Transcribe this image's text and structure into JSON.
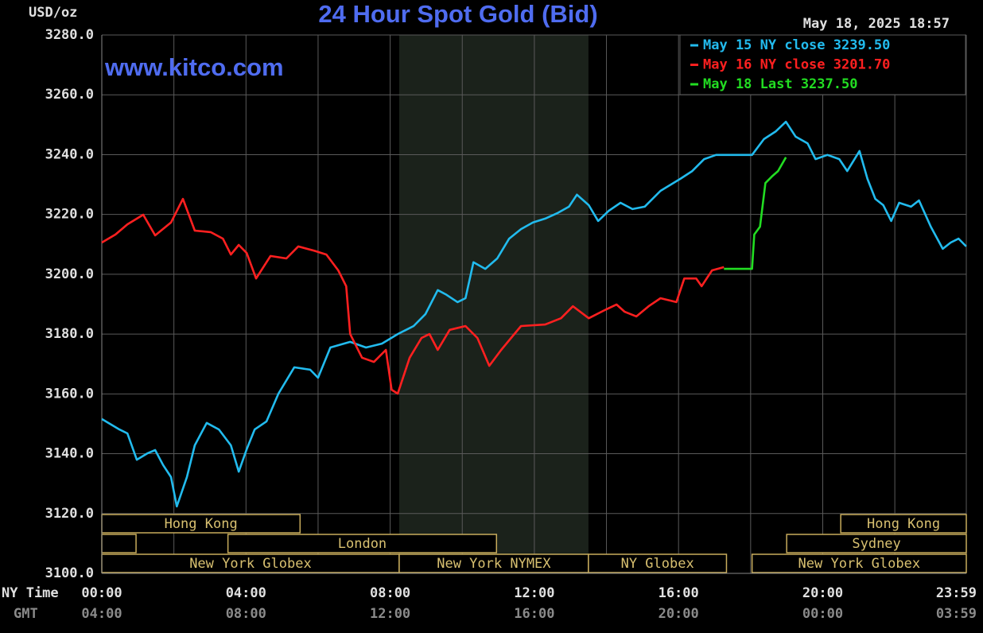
{
  "chart_data": {
    "type": "line",
    "title": "24 Hour Spot Gold (Bid)",
    "y_unit": "USD/oz",
    "timestamp": "May 18, 2025 18:57",
    "watermark": "www.kitco.com",
    "x_row_label": "NY Time",
    "x2_row_label": "GMT",
    "xlim": [
      0,
      23.983
    ],
    "ylim": [
      3100,
      3280
    ],
    "xticks": [
      {
        "value": 0,
        "label": "00:00"
      },
      {
        "value": 4,
        "label": "04:00"
      },
      {
        "value": 8,
        "label": "08:00"
      },
      {
        "value": 12,
        "label": "12:00"
      },
      {
        "value": 16,
        "label": "16:00"
      },
      {
        "value": 20,
        "label": "20:00"
      },
      {
        "value": 23.983,
        "label": "23:59"
      }
    ],
    "x2ticks": [
      {
        "value": 0,
        "label": "04:00"
      },
      {
        "value": 4,
        "label": "08:00"
      },
      {
        "value": 8,
        "label": "12:00"
      },
      {
        "value": 12,
        "label": "16:00"
      },
      {
        "value": 16,
        "label": "20:00"
      },
      {
        "value": 20,
        "label": "00:00"
      },
      {
        "value": 23.983,
        "label": "03:59"
      }
    ],
    "xgrid": [
      0,
      2,
      4,
      6,
      8,
      10,
      12,
      14,
      16,
      18,
      20,
      22,
      23.983
    ],
    "yticks": [
      {
        "value": 3100,
        "label": "3100.0"
      },
      {
        "value": 3120,
        "label": "3120.0"
      },
      {
        "value": 3140,
        "label": "3140.0"
      },
      {
        "value": 3160,
        "label": "3160.0"
      },
      {
        "value": 3180,
        "label": "3180.0"
      },
      {
        "value": 3200,
        "label": "3200.0"
      },
      {
        "value": 3220,
        "label": "3220.0"
      },
      {
        "value": 3240,
        "label": "3240.0"
      },
      {
        "value": 3260,
        "label": "3260.0"
      },
      {
        "value": 3280,
        "label": "3280.0"
      }
    ],
    "grid": true,
    "shaded_hours": [
      8.25,
      13.5
    ],
    "legend": "upper right",
    "sessions": [
      {
        "label": "Hong Kong",
        "start": 0,
        "end": 5.5,
        "row": 0
      },
      {
        "label": "Hong Kong",
        "start": 20.5,
        "end": 23.983,
        "row": 0
      },
      {
        "label": null,
        "start": 0,
        "end": 0.95,
        "row": 1
      },
      {
        "label": "London",
        "start": 3.5,
        "end": 10.95,
        "row": 1
      },
      {
        "label": "Sydney",
        "start": 19,
        "end": 23.983,
        "row": 1
      },
      {
        "label": "New York Globex",
        "start": 0,
        "end": 8.25,
        "row": 2
      },
      {
        "label": "New York NYMEX",
        "start": 8.25,
        "end": 13.5,
        "row": 2
      },
      {
        "label": "NY Globex",
        "start": 13.5,
        "end": 17.33,
        "row": 2
      },
      {
        "label": "New York Globex",
        "start": 18.04,
        "end": 23.983,
        "row": 2
      }
    ],
    "series": [
      {
        "name": "May 15 NY close 3239.50",
        "color": "#22bbee",
        "x": [
          0,
          0.49,
          0.71,
          0.97,
          1.26,
          1.48,
          1.7,
          1.92,
          2.08,
          2.36,
          2.58,
          2.91,
          3.25,
          3.58,
          3.8,
          4.02,
          4.24,
          4.57,
          4.9,
          5.34,
          5.78,
          6,
          6.34,
          6.89,
          7.33,
          7.77,
          8.21,
          8.65,
          8.98,
          9.32,
          9.54,
          9.87,
          10.09,
          10.31,
          10.64,
          10.97,
          11.3,
          11.63,
          11.96,
          12.3,
          12.63,
          12.96,
          13.18,
          13.51,
          13.77,
          14.06,
          14.39,
          14.72,
          15.06,
          15.5,
          16.05,
          16.38,
          16.71,
          17.04,
          18.04,
          18.37,
          18.7,
          18.98,
          19.25,
          19.58,
          19.8,
          20.13,
          20.46,
          20.68,
          21.02,
          21.24,
          21.46,
          21.68,
          21.9,
          22.12,
          22.45,
          22.67,
          23,
          23.33,
          23.55,
          23.77,
          23.98
        ],
        "values": [
          3151.6,
          3148.1,
          3146.8,
          3138,
          3140.1,
          3141.2,
          3136.2,
          3132.2,
          3122.4,
          3132.2,
          3142.8,
          3150.3,
          3148.1,
          3142.8,
          3134,
          3141.5,
          3148.1,
          3150.8,
          3160.1,
          3168.9,
          3168.1,
          3165.4,
          3175.5,
          3177.4,
          3175.5,
          3176.8,
          3180,
          3182.7,
          3186.7,
          3194.7,
          3193.3,
          3190.7,
          3192,
          3204,
          3201.8,
          3205.3,
          3211.9,
          3215.1,
          3217.3,
          3218.6,
          3220.4,
          3222.6,
          3226.6,
          3223.1,
          3217.8,
          3221.2,
          3223.9,
          3221.8,
          3222.6,
          3227.9,
          3231.9,
          3234.5,
          3238.5,
          3239.9,
          3239.9,
          3245.2,
          3247.8,
          3251,
          3246,
          3243.8,
          3238.5,
          3239.9,
          3238.5,
          3234.5,
          3241.2,
          3231.9,
          3225.2,
          3223.1,
          3217.8,
          3223.9,
          3222.6,
          3224.7,
          3215.9,
          3208.5,
          3210.6,
          3211.9,
          3209.3
        ]
      },
      {
        "name": "May 16 NY close 3201.70",
        "color": "#ff2020",
        "x": [
          0,
          0.38,
          0.71,
          1.15,
          1.48,
          1.92,
          2.25,
          2.58,
          3.02,
          3.36,
          3.58,
          3.8,
          4.02,
          4.28,
          4.68,
          5.12,
          5.45,
          5.89,
          6.23,
          6.56,
          6.78,
          6.89,
          7.22,
          7.55,
          7.88,
          8.04,
          8.21,
          8.54,
          8.87,
          9.09,
          9.32,
          9.65,
          10.09,
          10.42,
          10.75,
          11.08,
          11.63,
          12.3,
          12.74,
          13.07,
          13.51,
          13.95,
          14.28,
          14.5,
          14.83,
          15.17,
          15.5,
          15.94,
          16.16,
          16.49,
          16.64,
          16.93,
          17.26
        ],
        "values": [
          3210.6,
          3213.3,
          3216.7,
          3219.9,
          3213,
          3217.3,
          3225.2,
          3214.6,
          3214.1,
          3211.9,
          3206.6,
          3209.8,
          3207.1,
          3198.6,
          3206.1,
          3205.3,
          3209.3,
          3207.9,
          3206.6,
          3201.3,
          3196,
          3180,
          3172.1,
          3170.7,
          3174.7,
          3161.4,
          3160.1,
          3172.1,
          3178.7,
          3180,
          3174.7,
          3181.4,
          3182.7,
          3178.7,
          3169.4,
          3174.7,
          3182.7,
          3183.2,
          3185.3,
          3189.3,
          3185.3,
          3188,
          3189.9,
          3187.5,
          3185.9,
          3189.3,
          3192,
          3190.7,
          3198.6,
          3198.6,
          3196,
          3201.3,
          3202.4
        ]
      },
      {
        "name": "May 18 Last 3237.50",
        "color": "#22dd22",
        "x": [
          17.26,
          18.04,
          18.1,
          18.26,
          18.41,
          18.59,
          18.76,
          18.98
        ],
        "values": [
          3201.8,
          3201.8,
          3213.3,
          3215.9,
          3230.5,
          3232.7,
          3234.5,
          3239.1
        ]
      }
    ]
  }
}
